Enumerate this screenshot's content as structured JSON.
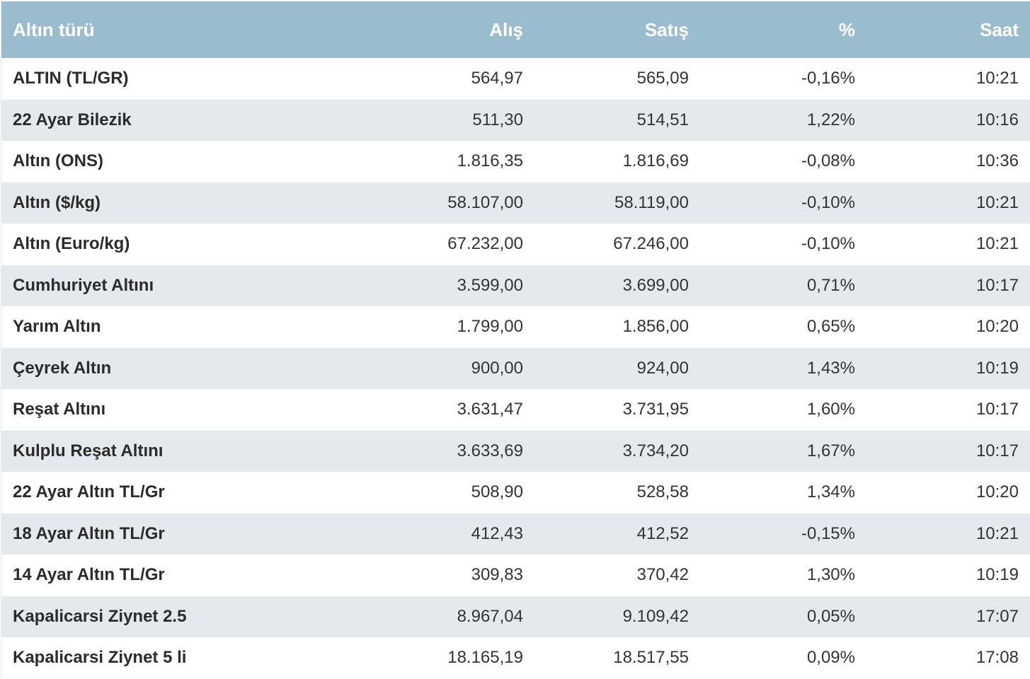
{
  "table": {
    "headers": {
      "name": "Altın türü",
      "buy": "Alış",
      "sell": "Satış",
      "change": "%",
      "time": "Saat"
    },
    "rows": [
      {
        "name": "ALTIN (TL/GR)",
        "buy": "564,97",
        "sell": "565,09",
        "change": "-0,16%",
        "time": "10:21"
      },
      {
        "name": "22 Ayar Bilezik",
        "buy": "511,30",
        "sell": "514,51",
        "change": "1,22%",
        "time": "10:16"
      },
      {
        "name": "Altın (ONS)",
        "buy": "1.816,35",
        "sell": "1.816,69",
        "change": "-0,08%",
        "time": "10:36"
      },
      {
        "name": "Altın ($/kg)",
        "buy": "58.107,00",
        "sell": "58.119,00",
        "change": "-0,10%",
        "time": "10:21"
      },
      {
        "name": "Altın (Euro/kg)",
        "buy": "67.232,00",
        "sell": "67.246,00",
        "change": "-0,10%",
        "time": "10:21"
      },
      {
        "name": "Cumhuriyet Altını",
        "buy": "3.599,00",
        "sell": "3.699,00",
        "change": "0,71%",
        "time": "10:17"
      },
      {
        "name": "Yarım Altın",
        "buy": "1.799,00",
        "sell": "1.856,00",
        "change": "0,65%",
        "time": "10:20"
      },
      {
        "name": "Çeyrek Altın",
        "buy": "900,00",
        "sell": "924,00",
        "change": "1,43%",
        "time": "10:19"
      },
      {
        "name": "Reşat Altını",
        "buy": "3.631,47",
        "sell": "3.731,95",
        "change": "1,60%",
        "time": "10:17"
      },
      {
        "name": "Kulplu Reşat Altını",
        "buy": "3.633,69",
        "sell": "3.734,20",
        "change": "1,67%",
        "time": "10:17"
      },
      {
        "name": "22 Ayar Altın TL/Gr",
        "buy": "508,90",
        "sell": "528,58",
        "change": "1,34%",
        "time": "10:20"
      },
      {
        "name": "18 Ayar Altın TL/Gr",
        "buy": "412,43",
        "sell": "412,52",
        "change": "-0,15%",
        "time": "10:21"
      },
      {
        "name": "14 Ayar Altın TL/Gr",
        "buy": "309,83",
        "sell": "370,42",
        "change": "1,30%",
        "time": "10:19"
      },
      {
        "name": "Kapalicarsi Ziynet 2.5",
        "buy": "8.967,04",
        "sell": "9.109,42",
        "change": "0,05%",
        "time": "17:07"
      },
      {
        "name": "Kapalicarsi Ziynet 5 li",
        "buy": "18.165,19",
        "sell": "18.517,55",
        "change": "0,09%",
        "time": "17:08"
      }
    ]
  },
  "colors": {
    "header_bg": "#99bccf",
    "header_text": "#ffffff",
    "row_alt_bg": "#e3e9ec",
    "row_bg": "#ffffff",
    "text": "#333333"
  }
}
